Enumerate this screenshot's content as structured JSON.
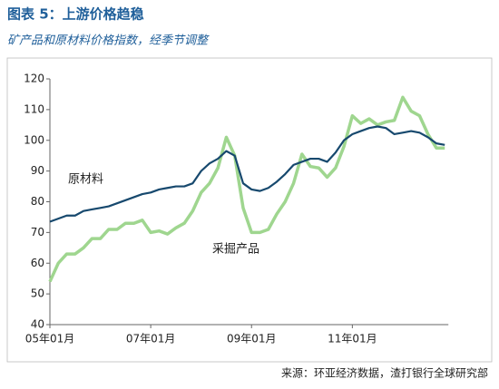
{
  "chart_data": {
    "type": "line",
    "title": "图表 5：上游价格趋稳",
    "subtitle": "矿产品和原材料价格指数，经季节调整",
    "source": "来源：环亚经济数据，渣打银行全球研究部",
    "categories": [
      "05年01月",
      null,
      null,
      null,
      null,
      null,
      null,
      null,
      null,
      null,
      null,
      null,
      "07年01月",
      null,
      null,
      null,
      null,
      null,
      null,
      null,
      null,
      null,
      null,
      null,
      "09年01月",
      null,
      null,
      null,
      null,
      null,
      null,
      null,
      null,
      null,
      null,
      null,
      "11年01月",
      null,
      null,
      null,
      null,
      null,
      null,
      null,
      null,
      null,
      null,
      null
    ],
    "series": [
      {
        "name": "原材料",
        "color": "#17496e",
        "values": [
          73.5,
          74.5,
          75.5,
          75.5,
          77,
          77.5,
          78,
          78.5,
          79.5,
          80.5,
          81.5,
          82.5,
          83,
          84,
          84.5,
          85,
          85,
          86,
          90,
          92.5,
          94,
          96.5,
          95,
          86,
          84,
          83.5,
          84.5,
          86.5,
          89,
          92,
          93,
          94,
          94,
          93,
          96,
          100,
          102,
          103,
          104,
          104.5,
          104,
          102,
          102.5,
          103,
          102.5,
          101,
          99,
          98.5
        ]
      },
      {
        "name": "采掘产品",
        "color": "#9fd68f",
        "values": [
          54,
          60,
          63,
          63,
          65,
          68,
          68,
          71,
          71,
          73,
          73,
          74,
          70,
          70.5,
          69.5,
          71.5,
          73,
          77,
          83,
          86,
          91,
          101,
          95,
          78,
          70,
          70,
          71,
          76,
          80,
          86,
          95.5,
          91.5,
          91,
          88,
          91,
          98,
          108,
          105.5,
          107,
          105,
          106,
          106.5,
          114,
          109.5,
          108,
          102,
          97.5,
          97.5
        ]
      }
    ],
    "ylim": [
      40,
      120
    ],
    "yticks": [
      40,
      50,
      60,
      70,
      80,
      90,
      100,
      110,
      120
    ]
  }
}
